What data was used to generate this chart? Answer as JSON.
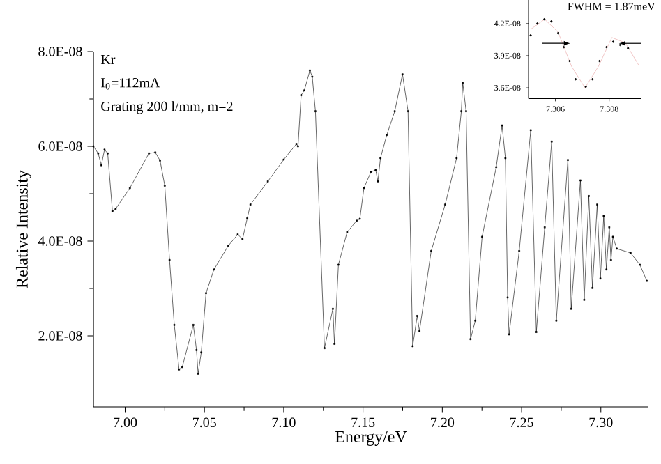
{
  "chart_data": [
    {
      "type": "line",
      "xlabel": "Energy/eV",
      "ylabel": "Relative Intensity",
      "marker": "square",
      "line_style": "solid",
      "color": "#000000",
      "annotations": [
        "Kr",
        "I$_{0}$=112mA",
        "Grating 200 l/mm, m=2"
      ],
      "xlim": [
        6.98,
        7.33
      ],
      "ylim": [
        5e-09,
        8e-08
      ],
      "xticks": [
        {
          "value": 7.0,
          "label": "7.00"
        },
        {
          "value": 7.05,
          "label": "7.05"
        },
        {
          "value": 7.1,
          "label": "7.10"
        },
        {
          "value": 7.15,
          "label": "7.15"
        },
        {
          "value": 7.2,
          "label": "7.20"
        },
        {
          "value": 7.25,
          "label": "7.25"
        },
        {
          "value": 7.3,
          "label": "7.30"
        }
      ],
      "yticks": [
        {
          "value": 2e-08,
          "label": "2.0E-08"
        },
        {
          "value": 4e-08,
          "label": "4.0E-08"
        },
        {
          "value": 6e-08,
          "label": "6.0E-08"
        },
        {
          "value": 8e-08,
          "label": "8.0E-08"
        }
      ],
      "x": [
        6.98,
        6.983,
        6.985,
        6.987,
        6.989,
        6.992,
        6.994,
        7.003,
        7.015,
        7.019,
        7.022,
        7.025,
        7.028,
        7.031,
        7.034,
        7.036,
        7.043,
        7.045,
        7.046,
        7.048,
        7.051,
        7.056,
        7.065,
        7.071,
        7.074,
        7.077,
        7.079,
        7.09,
        7.1,
        7.108,
        7.109,
        7.111,
        7.113,
        7.1165,
        7.118,
        7.12,
        7.1257,
        7.131,
        7.132,
        7.1345,
        7.14,
        7.146,
        7.148,
        7.1506,
        7.155,
        7.158,
        7.1594,
        7.161,
        7.165,
        7.17,
        7.1749,
        7.1784,
        7.1813,
        7.1842,
        7.1856,
        7.193,
        7.2018,
        7.209,
        7.212,
        7.2129,
        7.215,
        7.2178,
        7.2208,
        7.2251,
        7.234,
        7.2377,
        7.2398,
        7.2412,
        7.2421,
        7.2485,
        7.2558,
        7.2593,
        7.2646,
        7.269,
        7.2719,
        7.2792,
        7.2813,
        7.2871,
        7.2895,
        7.2924,
        7.2947,
        7.2977,
        7.2997,
        7.3018,
        7.3035,
        7.3053,
        7.3064,
        7.3076,
        7.31,
        7.3187,
        7.3246,
        7.329
      ],
      "values": [
        6e-08,
        5.85e-08,
        5.6e-08,
        5.93e-08,
        5.85e-08,
        4.63e-08,
        4.68e-08,
        5.12e-08,
        5.85e-08,
        5.87e-08,
        5.7e-08,
        5.17e-08,
        3.6e-08,
        2.23e-08,
        1.29e-08,
        1.34e-08,
        2.23e-08,
        1.7e-08,
        1.2e-08,
        1.65e-08,
        2.9e-08,
        3.4e-08,
        3.9e-08,
        4.14e-08,
        4.04e-08,
        4.48e-08,
        4.77e-08,
        5.26e-08,
        5.72e-08,
        6.05e-08,
        6e-08,
        7.08e-08,
        7.18e-08,
        7.6e-08,
        7.47e-08,
        6.74e-08,
        1.74e-08,
        2.57e-08,
        1.83e-08,
        3.5e-08,
        4.19e-08,
        4.43e-08,
        4.47e-08,
        5.12e-08,
        5.46e-08,
        5.5e-08,
        5.26e-08,
        5.75e-08,
        6.24e-08,
        6.74e-08,
        7.52e-08,
        6.74e-08,
        1.78e-08,
        2.42e-08,
        2.1e-08,
        3.79e-08,
        4.77e-08,
        5.75e-08,
        6.74e-08,
        7.34e-08,
        6.74e-08,
        1.93e-08,
        2.32e-08,
        4.09e-08,
        5.56e-08,
        6.44e-08,
        5.75e-08,
        2.81e-08,
        2.03e-08,
        3.79e-08,
        6.34e-08,
        2.08e-08,
        4.29e-08,
        6.1e-08,
        2.32e-08,
        5.71e-08,
        2.57e-08,
        5.28e-08,
        2.76e-08,
        4.95e-08,
        3.01e-08,
        4.77e-08,
        3.21e-08,
        4.53e-08,
        3.4e-08,
        4.29e-08,
        3.6e-08,
        4.09e-08,
        3.84e-08,
        3.75e-08,
        3.5e-08,
        3.16e-08
      ]
    },
    {
      "type": "scatter",
      "annotations": [
        "FWHM = 1.87meV"
      ],
      "xlim": [
        7.305,
        7.3092
      ],
      "ylim": [
        3.5e-08,
        4.42e-08
      ],
      "xticks": [
        7.306,
        7.308
      ],
      "yticks": [
        {
          "value": 3.6e-08,
          "label": "3.6E-08"
        },
        {
          "value": 3.9e-08,
          "label": "3.9E-08"
        },
        {
          "value": 4.2e-08,
          "label": "4.2E-08"
        }
      ],
      "series": [
        {
          "type": "scatter",
          "marker": "circle",
          "color": "#000000",
          "x": [
            7.30508,
            7.30533,
            7.30559,
            7.30585,
            7.3061,
            7.30631,
            7.30653,
            7.30675,
            7.30713,
            7.30738,
            7.30764,
            7.3079,
            7.30815,
            7.30841,
            7.3087
          ],
          "values": [
            4.09e-08,
            4.2e-08,
            4.24e-08,
            4.22e-08,
            4.11e-08,
            3.98e-08,
            3.85e-08,
            3.68e-08,
            3.61e-08,
            3.68e-08,
            3.85e-08,
            3.98e-08,
            4.03e-08,
            4e-08,
            3.97e-08
          ]
        },
        {
          "type": "line",
          "marker": "none",
          "color": "#e8a0a0",
          "x": [
            7.3051,
            7.3056,
            7.3061,
            7.3066,
            7.3071,
            7.3076,
            7.3081,
            7.3086,
            7.3091
          ],
          "values": [
            4.15e-08,
            4.24e-08,
            4.12e-08,
            3.8e-08,
            3.6e-08,
            3.8e-08,
            4.07e-08,
            4.02e-08,
            3.81e-08
          ]
        }
      ]
    }
  ]
}
